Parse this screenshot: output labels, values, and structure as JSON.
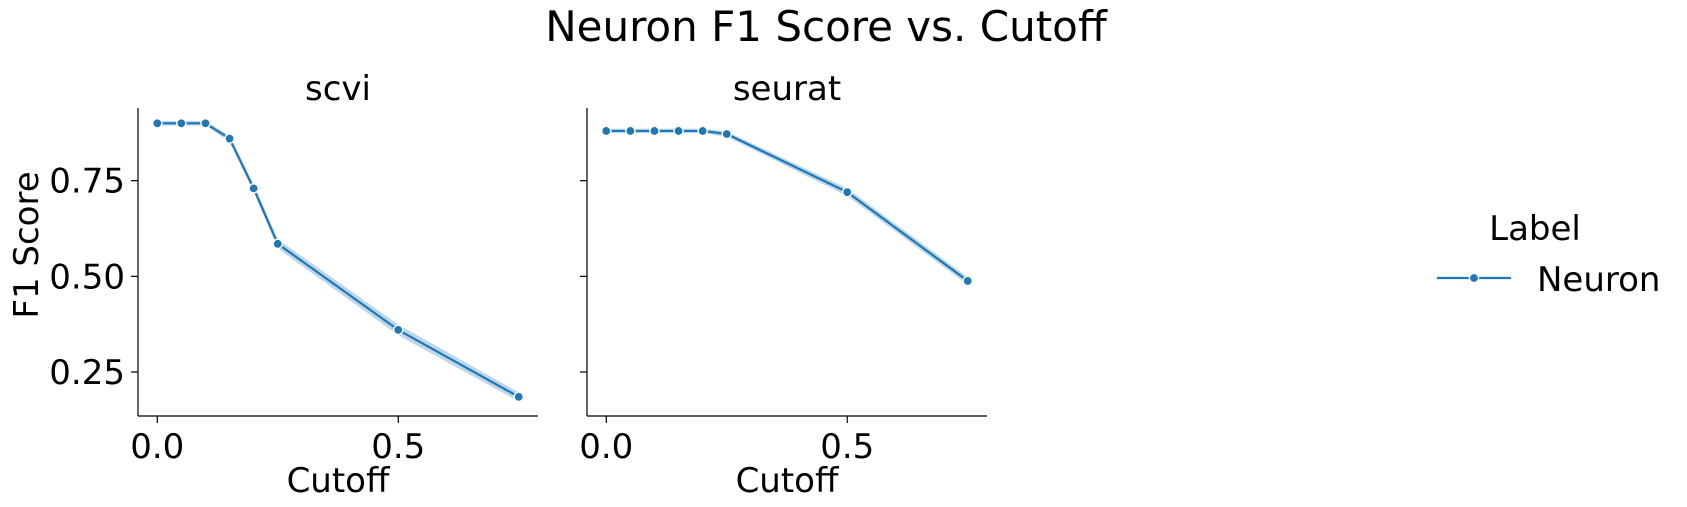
{
  "chart_data": {
    "type": "line",
    "title": "Neuron F1 Score vs. Cutoff",
    "ylabel": "F1 Score",
    "xlim": [
      -0.04,
      0.79
    ],
    "ylim": [
      0.135,
      0.94
    ],
    "x_ticks": [
      0.0,
      0.5
    ],
    "x_tick_labels": [
      "0.0",
      "0.5"
    ],
    "y_ticks": [
      0.25,
      0.5,
      0.75
    ],
    "y_tick_labels": [
      "0.25",
      "0.50",
      "0.75"
    ],
    "grid": false,
    "legend": {
      "title": "Label",
      "position": "right",
      "entries": [
        "Neuron"
      ]
    },
    "colors": {
      "line": "#1f77b4",
      "band": "#a6c8e3",
      "marker_edge": "#ffffff",
      "axis": "#000000"
    },
    "panels": [
      {
        "title": "scvi",
        "xlabel": "Cutoff",
        "series": [
          {
            "name": "Neuron",
            "x": [
              0.0,
              0.05,
              0.1,
              0.15,
              0.2,
              0.25,
              0.5,
              0.75
            ],
            "y": [
              0.9,
              0.9,
              0.9,
              0.86,
              0.73,
              0.585,
              0.36,
              0.185
            ],
            "band": [
              0.006,
              0.006,
              0.006,
              0.008,
              0.01,
              0.012,
              0.014,
              0.012
            ]
          }
        ]
      },
      {
        "title": "seurat",
        "xlabel": "Cutoff",
        "series": [
          {
            "name": "Neuron",
            "x": [
              0.0,
              0.05,
              0.1,
              0.15,
              0.2,
              0.25,
              0.5,
              0.75
            ],
            "y": [
              0.88,
              0.88,
              0.88,
              0.88,
              0.88,
              0.872,
              0.72,
              0.488
            ],
            "band": [
              0.006,
              0.006,
              0.006,
              0.006,
              0.006,
              0.007,
              0.01,
              0.01
            ]
          }
        ]
      }
    ]
  }
}
